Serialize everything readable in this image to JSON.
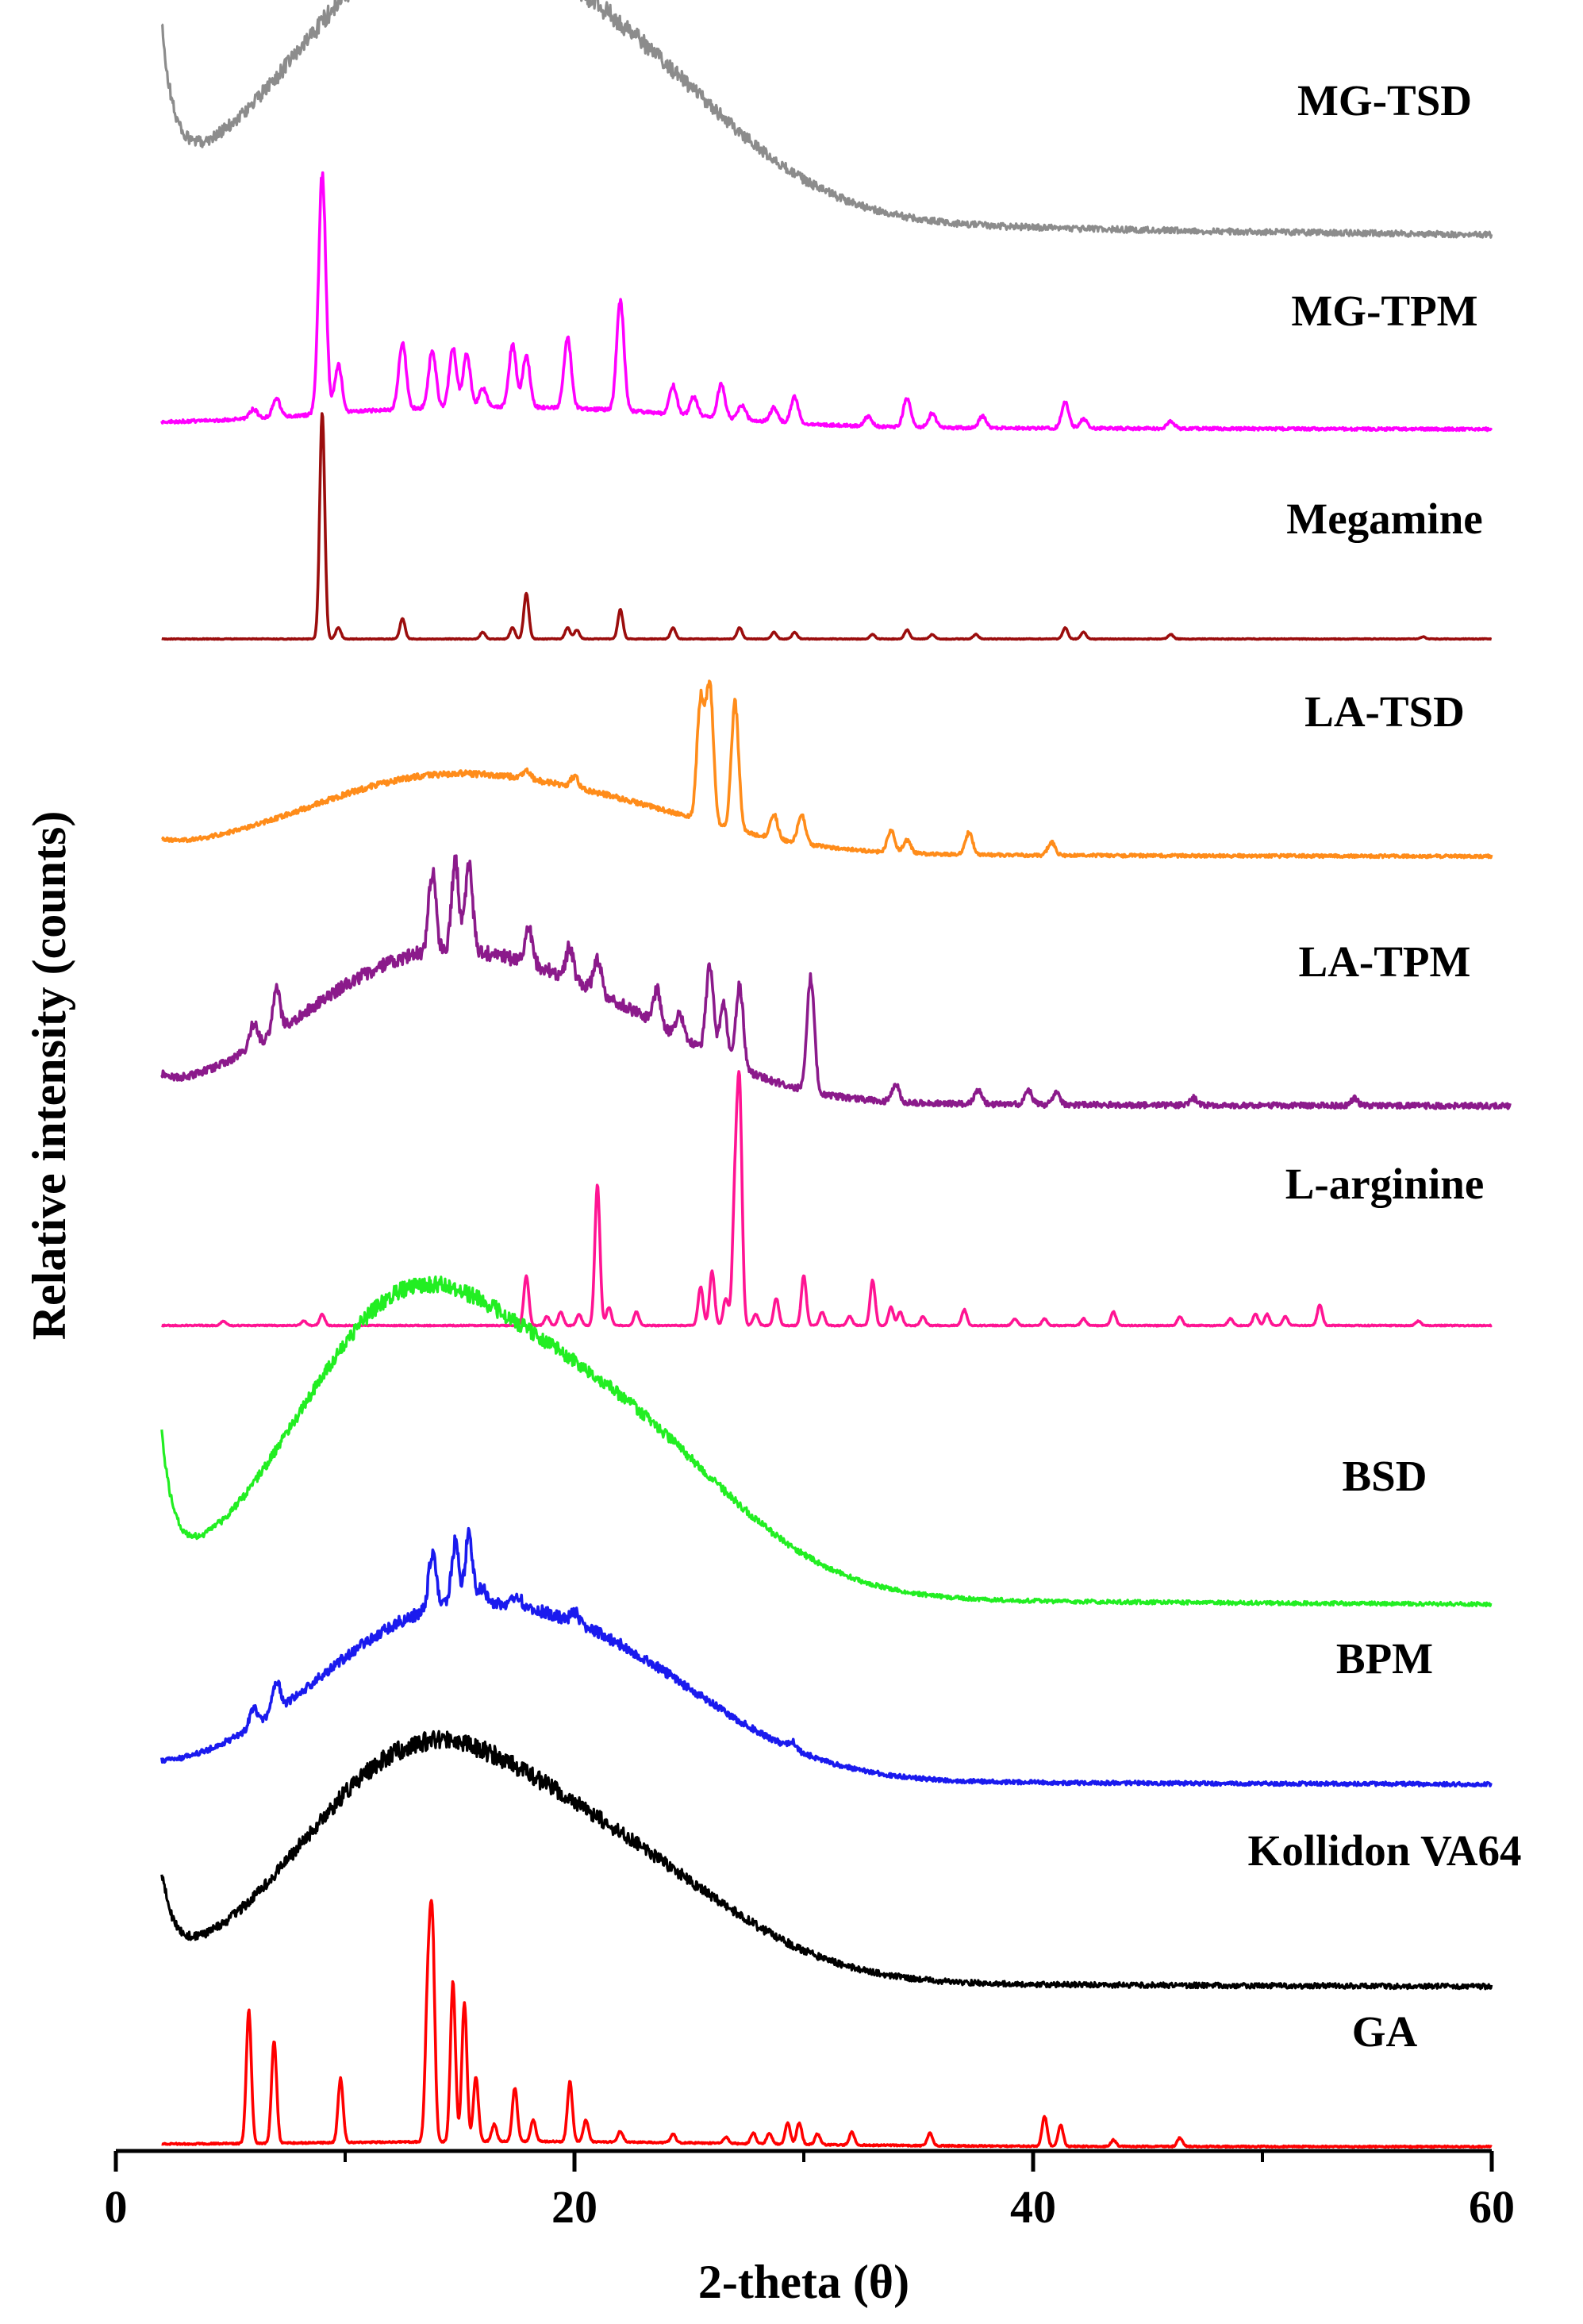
{
  "chart_data": {
    "type": "line",
    "title": "",
    "xlabel": "2-theta (θ)",
    "ylabel": "Relative intensity (counts)",
    "xlim": [
      0,
      60
    ],
    "xticks": [
      0,
      20,
      40,
      60
    ],
    "grid": false,
    "legend": "inline labels beside each trace",
    "series": [
      {
        "name": "MG-TSD",
        "color": "#8c8c8c",
        "kind": "amorphous",
        "x_start": 2,
        "x_end": 60,
        "start_level": 0.62,
        "halo": [
          [
            12.5,
            5.0,
            0.92
          ],
          [
            21.0,
            5.5,
            0.7
          ]
        ],
        "tail": 0.22,
        "noise": 0.03,
        "peaks": []
      },
      {
        "name": "MG-TPM",
        "color": "#ff00ff",
        "kind": "mixture",
        "x_start": 2,
        "x_end": 60,
        "start_level": 0,
        "halo": [
          [
            12.5,
            5.0,
            0.05
          ],
          [
            21.0,
            5.5,
            0.06
          ]
        ],
        "tail": 0.03,
        "noise": 0.015,
        "peaks": [
          [
            6,
            0.04
          ],
          [
            7,
            0.08
          ],
          [
            9.0,
            1.0
          ],
          [
            9.7,
            0.2
          ],
          [
            12.5,
            0.28
          ],
          [
            13.8,
            0.24
          ],
          [
            14.7,
            0.25
          ],
          [
            15.3,
            0.22
          ],
          [
            16.0,
            0.08
          ],
          [
            17.3,
            0.26
          ],
          [
            17.9,
            0.22
          ],
          [
            19.7,
            0.3
          ],
          [
            22.0,
            0.46
          ],
          [
            24.3,
            0.12
          ],
          [
            25.2,
            0.08
          ],
          [
            26.4,
            0.14
          ],
          [
            27.3,
            0.06
          ],
          [
            28.7,
            0.06
          ],
          [
            29.6,
            0.11
          ],
          [
            32.8,
            0.04
          ],
          [
            34.5,
            0.12
          ],
          [
            35.6,
            0.06
          ],
          [
            37.8,
            0.05
          ],
          [
            41.4,
            0.11
          ],
          [
            42.2,
            0.04
          ],
          [
            46.0,
            0.03
          ]
        ]
      },
      {
        "name": "Megamine",
        "color": "#9b0d0d",
        "kind": "crystalline",
        "x_start": 2,
        "x_end": 60,
        "start_level": 0,
        "halo": [],
        "tail": 0,
        "noise": 0.004,
        "peaks": [
          [
            9.0,
            1.0
          ],
          [
            9.7,
            0.05
          ],
          [
            12.5,
            0.09
          ],
          [
            16.0,
            0.03
          ],
          [
            17.3,
            0.05
          ],
          [
            17.9,
            0.2
          ],
          [
            19.7,
            0.05
          ],
          [
            20.1,
            0.04
          ],
          [
            22.0,
            0.13
          ],
          [
            24.3,
            0.05
          ],
          [
            27.2,
            0.05
          ],
          [
            28.7,
            0.03
          ],
          [
            29.6,
            0.03
          ],
          [
            33.0,
            0.02
          ],
          [
            34.5,
            0.04
          ],
          [
            35.6,
            0.02
          ],
          [
            37.5,
            0.02
          ],
          [
            41.4,
            0.05
          ],
          [
            42.2,
            0.03
          ],
          [
            46.0,
            0.02
          ],
          [
            57.0,
            0.01
          ]
        ]
      },
      {
        "name": "LA-TSD",
        "color": "#ff8c1a",
        "kind": "mixture",
        "x_start": 2,
        "x_end": 60,
        "start_level": 0.03,
        "halo": [
          [
            12.5,
            5.0,
            0.26
          ],
          [
            20.5,
            5.5,
            0.22
          ]
        ],
        "tail": 0.03,
        "noise": 0.018,
        "peaks": [
          [
            17.9,
            0.04
          ],
          [
            20.0,
            0.05
          ],
          [
            25.5,
            0.55
          ],
          [
            25.9,
            0.62
          ],
          [
            27.0,
            0.58
          ],
          [
            28.7,
            0.11
          ],
          [
            29.9,
            0.13
          ],
          [
            33.8,
            0.1
          ],
          [
            34.5,
            0.06
          ],
          [
            37.2,
            0.1
          ],
          [
            40.8,
            0.06
          ]
        ]
      },
      {
        "name": "LA-TPM",
        "color": "#8b1a8b",
        "kind": "mixture",
        "x_start": 2,
        "x_end": 60.8,
        "start_level": 0.05,
        "halo": [
          [
            12.5,
            5.0,
            0.52
          ],
          [
            20.5,
            5.0,
            0.36
          ]
        ],
        "tail": 0.04,
        "noise": 0.03,
        "peaks": [
          [
            6.0,
            0.1
          ],
          [
            7.0,
            0.18
          ],
          [
            13.8,
            0.34
          ],
          [
            14.8,
            0.38
          ],
          [
            15.4,
            0.36
          ],
          [
            18.0,
            0.15
          ],
          [
            19.8,
            0.14
          ],
          [
            21.0,
            0.15
          ],
          [
            23.6,
            0.15
          ],
          [
            24.6,
            0.1
          ],
          [
            25.9,
            0.38
          ],
          [
            26.5,
            0.25
          ],
          [
            27.2,
            0.36
          ],
          [
            30.3,
            0.5
          ],
          [
            34.0,
            0.08
          ],
          [
            37.6,
            0.06
          ],
          [
            39.8,
            0.06
          ],
          [
            41.0,
            0.05
          ],
          [
            47.0,
            0.03
          ],
          [
            54.0,
            0.03
          ]
        ]
      },
      {
        "name": "L-arginine",
        "color": "#ff1493",
        "kind": "crystalline",
        "x_start": 2,
        "x_end": 60,
        "start_level": 0,
        "halo": [],
        "tail": 0,
        "noise": 0.006,
        "peaks": [
          [
            4.7,
            0.02
          ],
          [
            8.2,
            0.02
          ],
          [
            9.0,
            0.05
          ],
          [
            17.9,
            0.22
          ],
          [
            18.8,
            0.04
          ],
          [
            19.4,
            0.06
          ],
          [
            20.2,
            0.05
          ],
          [
            21.0,
            0.62
          ],
          [
            21.5,
            0.08
          ],
          [
            22.7,
            0.06
          ],
          [
            25.5,
            0.17
          ],
          [
            26.0,
            0.24
          ],
          [
            26.6,
            0.12
          ],
          [
            27.0,
            0.55
          ],
          [
            27.2,
            1.0
          ],
          [
            27.9,
            0.05
          ],
          [
            28.8,
            0.12
          ],
          [
            30.0,
            0.22
          ],
          [
            30.8,
            0.06
          ],
          [
            32.0,
            0.04
          ],
          [
            33.0,
            0.2
          ],
          [
            33.8,
            0.08
          ],
          [
            34.2,
            0.06
          ],
          [
            35.2,
            0.04
          ],
          [
            37.0,
            0.07
          ],
          [
            39.2,
            0.03
          ],
          [
            40.5,
            0.03
          ],
          [
            42.2,
            0.03
          ],
          [
            43.5,
            0.06
          ],
          [
            46.4,
            0.04
          ],
          [
            48.6,
            0.03
          ],
          [
            49.7,
            0.05
          ],
          [
            50.2,
            0.05
          ],
          [
            51.0,
            0.04
          ],
          [
            52.5,
            0.09
          ],
          [
            56.8,
            0.02
          ]
        ]
      },
      {
        "name": "BSD",
        "color": "#22ee22",
        "kind": "amorphous",
        "x_start": 2,
        "x_end": 60,
        "start_level": 0.55,
        "halo": [
          [
            12.0,
            4.5,
            1.02
          ],
          [
            20.7,
            5.5,
            0.78
          ]
        ],
        "tail": 0.09,
        "noise": 0.02,
        "peaks": []
      },
      {
        "name": "BPM",
        "color": "#1a1aee",
        "kind": "mixture",
        "x_start": 2,
        "x_end": 60,
        "start_level": 0.02,
        "halo": [
          [
            12.5,
            4.8,
            0.6
          ],
          [
            20.5,
            5.5,
            0.65
          ]
        ],
        "tail": 0.06,
        "noise": 0.025,
        "peaks": [
          [
            6.0,
            0.1
          ],
          [
            7.0,
            0.16
          ],
          [
            13.8,
            0.3
          ],
          [
            14.8,
            0.32
          ],
          [
            15.4,
            0.36
          ],
          [
            16.0,
            0.08
          ],
          [
            17.5,
            0.06
          ],
          [
            20.0,
            0.06
          ],
          [
            29.5,
            0.04
          ]
        ]
      },
      {
        "name": "Kollidon VA64",
        "color": "#000000",
        "kind": "amorphous",
        "x_start": 2,
        "x_end": 60,
        "start_level": 0.4,
        "halo": [
          [
            12.5,
            4.8,
            0.9
          ],
          [
            21.0,
            5.5,
            0.58
          ]
        ],
        "tail": 0.06,
        "noise": 0.03,
        "peaks": []
      },
      {
        "name": "GA",
        "color": "#ff0000",
        "kind": "crystalline",
        "x_start": 2,
        "x_end": 60,
        "start_level": 0,
        "halo": [
          [
            18,
            9,
            0.02
          ]
        ],
        "tail": 0.01,
        "noise": 0.008,
        "peaks": [
          [
            5.8,
            0.62
          ],
          [
            6.9,
            0.48
          ],
          [
            9.8,
            0.3
          ],
          [
            13.6,
            0.65
          ],
          [
            13.8,
            0.97
          ],
          [
            14.7,
            0.74
          ],
          [
            15.2,
            0.65
          ],
          [
            15.7,
            0.3
          ],
          [
            16.5,
            0.08
          ],
          [
            17.4,
            0.25
          ],
          [
            18.2,
            0.1
          ],
          [
            19.8,
            0.28
          ],
          [
            20.5,
            0.1
          ],
          [
            22.0,
            0.05
          ],
          [
            24.3,
            0.04
          ],
          [
            26.6,
            0.03
          ],
          [
            27.8,
            0.05
          ],
          [
            28.5,
            0.05
          ],
          [
            29.3,
            0.1
          ],
          [
            29.8,
            0.1
          ],
          [
            30.6,
            0.05
          ],
          [
            32.1,
            0.06
          ],
          [
            35.5,
            0.06
          ],
          [
            40.5,
            0.14
          ],
          [
            41.2,
            0.1
          ],
          [
            43.5,
            0.03
          ],
          [
            46.4,
            0.04
          ]
        ]
      }
    ]
  }
}
